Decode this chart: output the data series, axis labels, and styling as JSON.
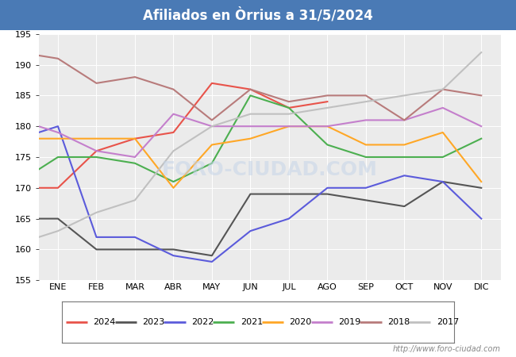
{
  "title": "Afiliados en Òrrius a 31/5/2024",
  "title_bg_color": "#4a7ab5",
  "title_text_color": "white",
  "ylim": [
    155,
    195
  ],
  "yticks": [
    155,
    160,
    165,
    170,
    175,
    180,
    185,
    190,
    195
  ],
  "months": [
    "ENE",
    "FEB",
    "MAR",
    "ABR",
    "MAY",
    "JUN",
    "JUL",
    "AGO",
    "SEP",
    "OCT",
    "NOV",
    "DIC"
  ],
  "watermark": "FORO-CIUDAD.COM",
  "url": "http://www.foro-ciudad.com",
  "series": {
    "2024": {
      "color": "#e8534a",
      "data": [
        170,
        170,
        176,
        178,
        179,
        187,
        186,
        183,
        184,
        null,
        null,
        null,
        null
      ]
    },
    "2023": {
      "color": "#555555",
      "data": [
        165,
        165,
        160,
        160,
        160,
        159,
        169,
        169,
        169,
        168,
        167,
        171,
        170
      ]
    },
    "2022": {
      "color": "#5b5bdb",
      "data": [
        178,
        180,
        162,
        162,
        159,
        158,
        163,
        165,
        170,
        170,
        172,
        171,
        165
      ]
    },
    "2021": {
      "color": "#4caf50",
      "data": [
        171,
        175,
        175,
        174,
        171,
        174,
        185,
        183,
        177,
        175,
        175,
        175,
        178
      ]
    },
    "2020": {
      "color": "#ffa726",
      "data": [
        178,
        178,
        178,
        178,
        170,
        177,
        178,
        180,
        180,
        177,
        177,
        179,
        171
      ]
    },
    "2019": {
      "color": "#c47fcc",
      "data": [
        181,
        179,
        176,
        175,
        182,
        180,
        180,
        180,
        180,
        181,
        181,
        183,
        180
      ]
    },
    "2018": {
      "color": "#b87b7b",
      "data": [
        192,
        191,
        187,
        188,
        186,
        181,
        186,
        184,
        185,
        185,
        181,
        186,
        185
      ]
    },
    "2017": {
      "color": "#c0c0c0",
      "data": [
        161,
        163,
        166,
        168,
        176,
        180,
        182,
        182,
        183,
        184,
        185,
        186,
        192
      ]
    }
  },
  "series_order": [
    "2024",
    "2023",
    "2022",
    "2021",
    "2020",
    "2019",
    "2018",
    "2017"
  ]
}
